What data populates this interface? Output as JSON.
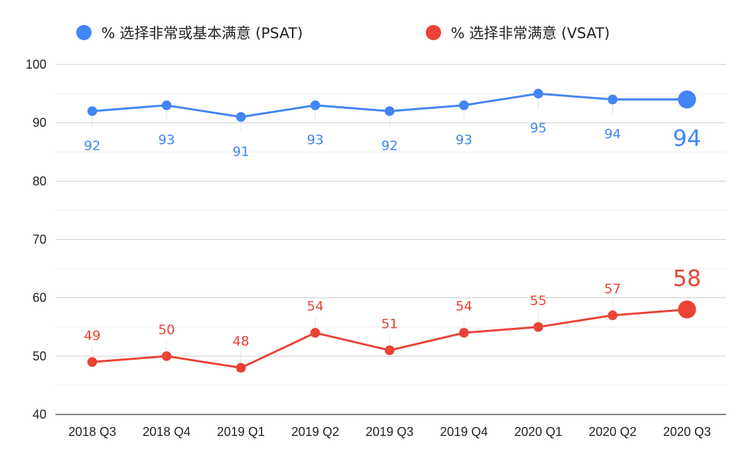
{
  "chart_data": {
    "type": "line",
    "categories": [
      "2018 Q3",
      "2018 Q4",
      "2019 Q1",
      "2019 Q2",
      "2019 Q3",
      "2019 Q4",
      "2020 Q1",
      "2020 Q2",
      "2020 Q3"
    ],
    "series": [
      {
        "name": "% 选择非常或基本满意 (PSAT)",
        "color": "#4285f4",
        "values": [
          92,
          93,
          91,
          93,
          92,
          93,
          95,
          94,
          94
        ],
        "labels": [
          "92",
          "93",
          "91",
          "93",
          "92",
          "93",
          "95",
          "94",
          "94"
        ],
        "label_position": "below"
      },
      {
        "name": "% 选择非常满意 (VSAT)",
        "color": "#ea4335",
        "values": [
          49,
          50,
          48,
          54,
          51,
          54,
          55,
          57,
          58
        ],
        "labels": [
          "49",
          "50",
          "48",
          "54",
          "51",
          "54",
          "55",
          "57",
          "58"
        ],
        "label_position": "above"
      }
    ],
    "ylim": [
      40,
      100
    ],
    "yticks": [
      40,
      50,
      60,
      70,
      80,
      90,
      100
    ],
    "ytick_labels": [
      "40",
      "50",
      "60",
      "70",
      "80",
      "90",
      "100"
    ],
    "minor_grid": true,
    "legend_position": "top",
    "title": "",
    "xlabel": "",
    "ylabel": ""
  }
}
